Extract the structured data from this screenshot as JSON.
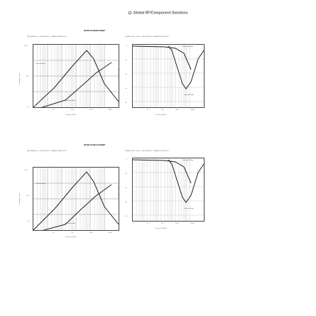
{
  "header": {
    "brand": "Global RF/Component Solutions"
  },
  "sections": [
    {
      "part": "MCM1012B900F06BP",
      "subtitles": [
        "IMPEDANCE vs. FREQUENCY CHARACTERISTICS",
        "INSERTION LOSS vs. FREQUENCY CHARACTERISTICS"
      ],
      "left_plot": {
        "ylabel": "Impedance (ohm)",
        "xlabel": "Frequency (MHz)",
        "label_a": "Common Mode",
        "label_b": "Differential Mode",
        "yticks": [
          "1000",
          "100",
          "10"
        ],
        "xticks": [
          "1",
          "10",
          "100",
          "1000",
          "10000"
        ]
      },
      "right_plot": {
        "ylabel": "Insertion Loss (dB)",
        "xlabel": "Frequency (MHz)",
        "label_a": "Differential Mode",
        "label_b": "Common Mode",
        "yticks": [
          "0",
          "-10",
          "-20",
          "-30",
          "-40"
        ],
        "xticks": [
          "1",
          "10",
          "100",
          "1000",
          "10000"
        ]
      }
    },
    {
      "part": "MCM1012B121F06BP",
      "subtitles": [
        "IMPEDANCE vs. FREQUENCY CHARACTERISTICS",
        "INSERTION LOSS vs. FREQUENCY CHARACTERISTICS"
      ],
      "left_plot": {
        "ylabel": "Impedance (ohm)",
        "xlabel": "Frequency (MHz)",
        "label_a": "Common Mode",
        "label_b": "Differential Mode",
        "yticks": [
          "1000",
          "100",
          "10"
        ],
        "xticks": [
          "1",
          "10",
          "100",
          "1000",
          "10000"
        ]
      },
      "right_plot": {
        "ylabel": "Insertion Loss (dB)",
        "xlabel": "Frequency (MHz)",
        "label_a": "Differential Mode",
        "label_b": "Common Mode",
        "yticks": [
          "0",
          "-10",
          "-20",
          "-30",
          "-40"
        ],
        "xticks": [
          "1",
          "10",
          "100",
          "1000",
          "10000"
        ]
      }
    }
  ]
}
